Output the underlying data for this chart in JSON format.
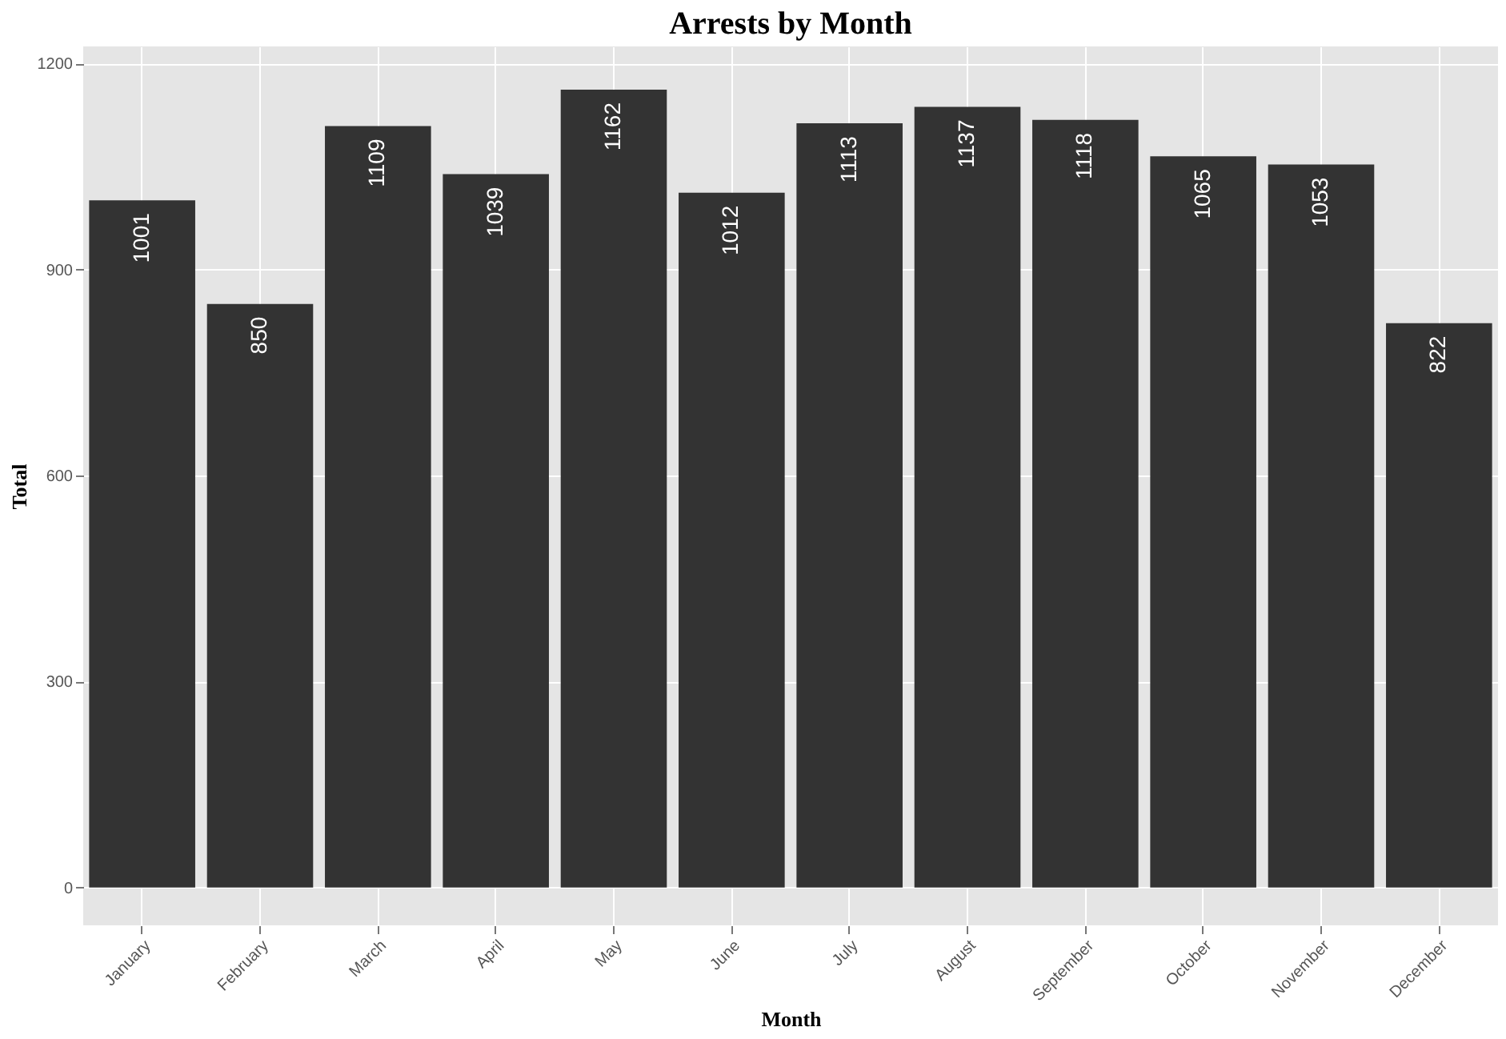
{
  "chart_data": {
    "type": "bar",
    "title": "Arrests by Month",
    "xlabel": "Month",
    "ylabel": "Total",
    "categories": [
      "January",
      "February",
      "March",
      "April",
      "May",
      "June",
      "July",
      "August",
      "September",
      "October",
      "November",
      "December"
    ],
    "values": [
      1001,
      850,
      1109,
      1039,
      1162,
      1012,
      1113,
      1137,
      1118,
      1065,
      1053,
      822
    ],
    "color": "#333333",
    "ylim": [
      -55,
      1225
    ],
    "yticks": [
      0,
      300,
      600,
      900,
      1200
    ],
    "grid": true,
    "data_labels": true
  }
}
